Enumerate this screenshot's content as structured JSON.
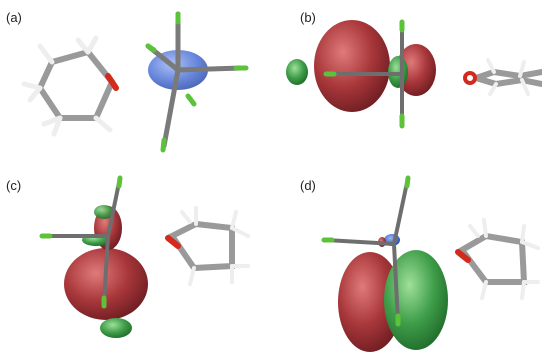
{
  "panels": [
    {
      "id": "a",
      "label": "(a)"
    },
    {
      "id": "b",
      "label": "(b)"
    },
    {
      "id": "c",
      "label": "(c)"
    },
    {
      "id": "d",
      "label": "(d)"
    }
  ],
  "colors": {
    "background": "#ffffff",
    "bond_gray": "#8a8a8a",
    "bond_dark": "#555555",
    "hydrogen": "#f2f2f2",
    "oxygen": "#d42a1e",
    "fluorine": "#5cc23a",
    "boron": "#2f7fd8",
    "lobe_red": "#a8373a",
    "lobe_green": "#3f9e49",
    "lobe_blue": "#4d72d6"
  }
}
